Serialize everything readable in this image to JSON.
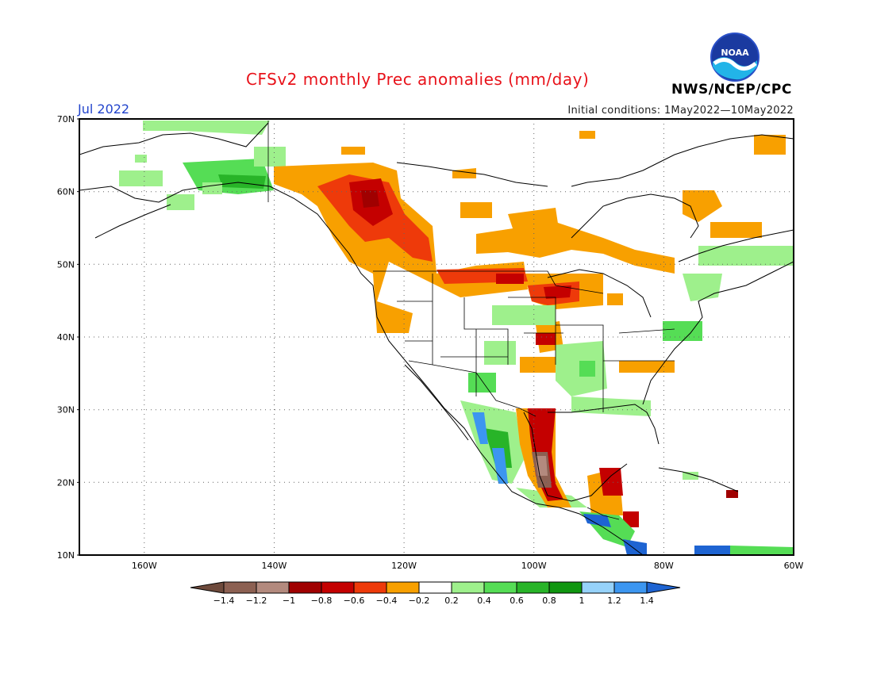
{
  "header": {
    "title": "CFSv2 monthly Prec anomalies (mm/day)",
    "month": "Jul 2022",
    "initial_conditions": "Initial conditions: 1May2022—10May2022",
    "agency": "NWS/NCEP/CPC",
    "logo_text": "NOAA"
  },
  "map": {
    "lat_labels": [
      "70N",
      "60N",
      "50N",
      "40N",
      "30N",
      "20N",
      "10N"
    ],
    "lon_labels": [
      "160W",
      "140W",
      "120W",
      "100W",
      "80W",
      "60W"
    ],
    "lon_range": [
      -170,
      -60
    ],
    "lat_range": [
      10,
      70
    ],
    "gridlines": "dotted"
  },
  "colorbar": {
    "labels": [
      "-1.4",
      "-1.2",
      "-1",
      "-0.8",
      "-0.6",
      "-0.4",
      "-0.2",
      "0.2",
      "0.4",
      "0.6",
      "0.8",
      "1",
      "1.2",
      "1.4"
    ],
    "colors": [
      "#6e4a3c",
      "#8c6052",
      "#b38a7e",
      "#a00000",
      "#c40000",
      "#ee3a0a",
      "#f8a000",
      "#ffffff",
      "#9ef08c",
      "#55dd55",
      "#28b428",
      "#109610",
      "#96d2fa",
      "#3c96f0",
      "#1e64d2"
    ]
  },
  "anomaly_regions": [
    {
      "name": "pacific-northwest-dry",
      "category": "-0.4"
    },
    {
      "name": "british-columbia-dry",
      "category": "-0.8"
    },
    {
      "name": "northern-plains-dry",
      "category": "-0.6"
    },
    {
      "name": "texas-gulf-dry",
      "category": "-1.2"
    },
    {
      "name": "yucatan-dry",
      "category": "-0.8"
    },
    {
      "name": "alaska-wet",
      "category": "0.6"
    },
    {
      "name": "mid-atlantic-wet",
      "category": "0.6"
    },
    {
      "name": "mexico-pacific-wet",
      "category": "1.2"
    },
    {
      "name": "central-america-wet",
      "category": "1.4"
    },
    {
      "name": "southeast-wet",
      "category": "0.4"
    }
  ]
}
